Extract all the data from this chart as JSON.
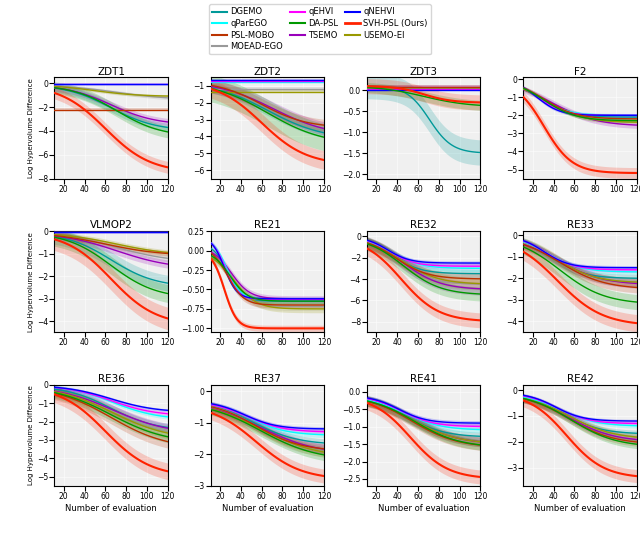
{
  "algorithms": [
    "DGEMO",
    "MOEAD-EGO",
    "TSEMO",
    "USEMO-EI",
    "qParEGO",
    "qEHVI",
    "qNEHVI",
    "PSL-MOBO",
    "DA-PSL",
    "SVH-PSL (Ours)"
  ],
  "colors": {
    "DGEMO": "#009999",
    "MOEAD-EGO": "#999999",
    "TSEMO": "#9900BB",
    "USEMO-EI": "#999900",
    "qParEGO": "#00FFFF",
    "qEHVI": "#FF00FF",
    "qNEHVI": "#0000FF",
    "PSL-MOBO": "#BB3300",
    "DA-PSL": "#009900",
    "SVH-PSL (Ours)": "#FF2200"
  },
  "legend_order": [
    "DGEMO",
    "qParEGO",
    "PSL-MOBO",
    "MOEAD-EGO",
    "qEHVI",
    "DA-PSL",
    "TSEMO",
    "qNEHVI",
    "SVH-PSL (Ours)",
    "USEMO-EI"
  ],
  "subplots": [
    "ZDT1",
    "ZDT2",
    "ZDT3",
    "F2",
    "VLMOP2",
    "RE21",
    "RE32",
    "RE33",
    "RE36",
    "RE37",
    "RE41",
    "RE42"
  ],
  "ylims": {
    "ZDT1": [
      -8,
      0.5
    ],
    "ZDT2": [
      -6.5,
      -0.5
    ],
    "ZDT3": [
      -2.1,
      0.3
    ],
    "F2": [
      -5.5,
      0.1
    ],
    "VLMOP2": [
      -4.5,
      0.0
    ],
    "RE21": [
      -1.05,
      0.25
    ],
    "RE32": [
      -9,
      0.5
    ],
    "RE33": [
      -4.5,
      0.2
    ],
    "RE36": [
      -5.5,
      0.0
    ],
    "RE37": [
      -3.0,
      0.2
    ],
    "RE41": [
      -2.7,
      0.2
    ],
    "RE42": [
      -3.7,
      0.2
    ]
  },
  "xlabel": "Number of evaluation",
  "ylabel": "Log Hypervolume Difference"
}
